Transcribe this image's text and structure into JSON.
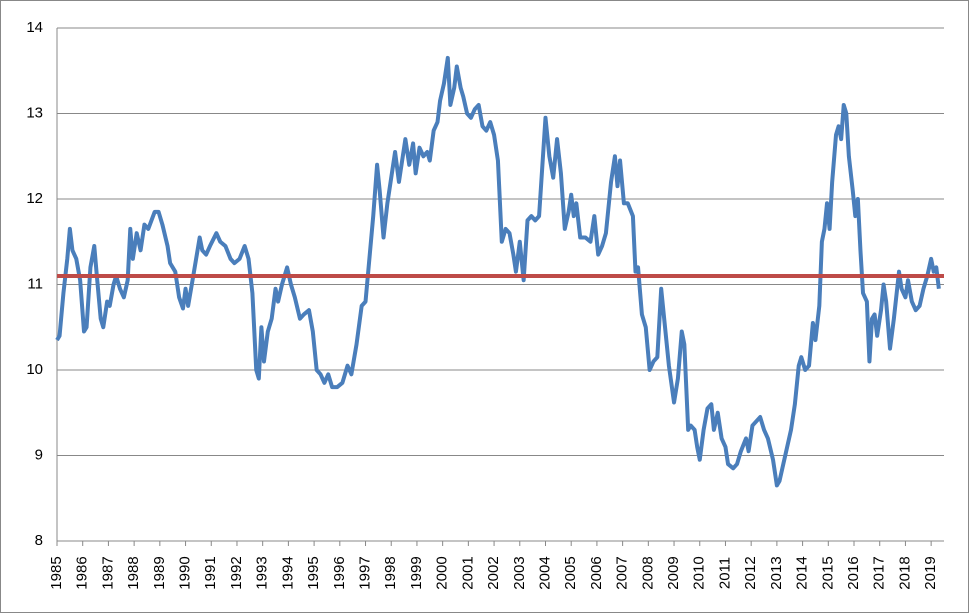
{
  "chart_data": {
    "type": "line",
    "x": [
      1985.0,
      1985.1,
      1985.25,
      1985.4,
      1985.5,
      1985.6,
      1985.75,
      1985.9,
      1986.05,
      1986.15,
      1986.3,
      1986.45,
      1986.55,
      1986.7,
      1986.8,
      1986.95,
      1987.05,
      1987.2,
      1987.3,
      1987.45,
      1987.6,
      1987.75,
      1987.85,
      1987.95,
      1988.1,
      1988.25,
      1988.4,
      1988.55,
      1988.8,
      1988.95,
      1989.1,
      1989.3,
      1989.4,
      1989.6,
      1989.75,
      1989.9,
      1990.0,
      1990.1,
      1990.3,
      1990.55,
      1990.65,
      1990.8,
      1990.95,
      1991.2,
      1991.35,
      1991.55,
      1991.75,
      1991.9,
      1992.1,
      1992.3,
      1992.45,
      1992.6,
      1992.75,
      1992.85,
      1992.95,
      1993.05,
      1993.2,
      1993.35,
      1993.5,
      1993.6,
      1993.75,
      1993.95,
      1994.1,
      1994.25,
      1994.45,
      1994.6,
      1994.8,
      1994.95,
      1995.1,
      1995.25,
      1995.4,
      1995.55,
      1995.7,
      1995.9,
      1996.1,
      1996.3,
      1996.45,
      1996.65,
      1996.85,
      1997.0,
      1997.15,
      1997.3,
      1997.45,
      1997.55,
      1997.7,
      1997.85,
      1998.05,
      1998.15,
      1998.3,
      1998.45,
      1998.55,
      1998.7,
      1998.85,
      1998.95,
      1999.1,
      1999.25,
      1999.4,
      1999.5,
      1999.65,
      1999.8,
      1999.9,
      2000.05,
      2000.2,
      2000.3,
      2000.45,
      2000.55,
      2000.7,
      2000.8,
      2000.95,
      2001.1,
      2001.25,
      2001.4,
      2001.55,
      2001.7,
      2001.85,
      2002.0,
      2002.15,
      2002.3,
      2002.45,
      2002.6,
      2002.75,
      2002.85,
      2003.0,
      2003.15,
      2003.3,
      2003.45,
      2003.6,
      2003.75,
      2004.0,
      2004.15,
      2004.3,
      2004.45,
      2004.6,
      2004.75,
      2004.9,
      2005.0,
      2005.1,
      2005.2,
      2005.35,
      2005.55,
      2005.75,
      2005.9,
      2006.05,
      2006.2,
      2006.35,
      2006.55,
      2006.7,
      2006.8,
      2006.9,
      2007.05,
      2007.2,
      2007.4,
      2007.5,
      2007.6,
      2007.75,
      2007.9,
      2008.05,
      2008.2,
      2008.35,
      2008.5,
      2008.65,
      2008.8,
      2009.0,
      2009.15,
      2009.3,
      2009.4,
      2009.55,
      2009.65,
      2009.8,
      2009.9,
      2010.0,
      2010.15,
      2010.3,
      2010.45,
      2010.55,
      2010.7,
      2010.85,
      2011.0,
      2011.1,
      2011.3,
      2011.45,
      2011.6,
      2011.8,
      2011.9,
      2012.05,
      2012.2,
      2012.35,
      2012.5,
      2012.65,
      2012.85,
      2013.0,
      2013.1,
      2013.25,
      2013.4,
      2013.55,
      2013.7,
      2013.85,
      2013.95,
      2014.1,
      2014.25,
      2014.4,
      2014.5,
      2014.65,
      2014.75,
      2014.85,
      2014.95,
      2015.05,
      2015.15,
      2015.3,
      2015.4,
      2015.5,
      2015.6,
      2015.7,
      2015.8,
      2015.95,
      2016.05,
      2016.15,
      2016.25,
      2016.35,
      2016.5,
      2016.6,
      2016.7,
      2016.8,
      2016.9,
      2017.05,
      2017.15,
      2017.25,
      2017.4,
      2017.55,
      2017.75,
      2017.85,
      2018.0,
      2018.1,
      2018.25,
      2018.4,
      2018.55,
      2018.7,
      2018.85,
      2019.0,
      2019.1,
      2019.2,
      2019.3
    ],
    "series": [
      {
        "color": "#4a7ebb",
        "values": [
          10.35,
          10.4,
          10.9,
          11.3,
          11.65,
          11.4,
          11.3,
          11.05,
          10.45,
          10.5,
          11.2,
          11.45,
          11.1,
          10.6,
          10.5,
          10.8,
          10.75,
          11.0,
          11.1,
          10.95,
          10.85,
          11.05,
          11.65,
          11.3,
          11.6,
          11.4,
          11.7,
          11.65,
          11.85,
          11.85,
          11.7,
          11.45,
          11.25,
          11.15,
          10.85,
          10.72,
          10.95,
          10.75,
          11.1,
          11.55,
          11.4,
          11.35,
          11.45,
          11.6,
          11.5,
          11.45,
          11.3,
          11.25,
          11.3,
          11.45,
          11.3,
          10.9,
          10.0,
          9.9,
          10.5,
          10.1,
          10.45,
          10.6,
          10.95,
          10.8,
          11.0,
          11.2,
          11.0,
          10.85,
          10.6,
          10.65,
          10.7,
          10.45,
          10.0,
          9.95,
          9.85,
          9.95,
          9.8,
          9.8,
          9.85,
          10.05,
          9.95,
          10.3,
          10.75,
          10.8,
          11.3,
          11.8,
          12.4,
          12.1,
          11.55,
          11.95,
          12.35,
          12.55,
          12.2,
          12.5,
          12.7,
          12.4,
          12.65,
          12.3,
          12.6,
          12.5,
          12.55,
          12.45,
          12.8,
          12.9,
          13.15,
          13.35,
          13.65,
          13.1,
          13.3,
          13.55,
          13.3,
          13.2,
          13.0,
          12.95,
          13.05,
          13.1,
          12.85,
          12.8,
          12.9,
          12.75,
          12.45,
          11.5,
          11.65,
          11.6,
          11.35,
          11.15,
          11.5,
          11.05,
          11.75,
          11.8,
          11.75,
          11.8,
          12.95,
          12.5,
          12.25,
          12.7,
          12.3,
          11.65,
          11.85,
          12.05,
          11.8,
          11.95,
          11.55,
          11.55,
          11.5,
          11.8,
          11.35,
          11.45,
          11.6,
          12.2,
          12.5,
          12.15,
          12.45,
          11.95,
          11.95,
          11.8,
          11.15,
          11.2,
          10.65,
          10.5,
          10.0,
          10.1,
          10.15,
          10.95,
          10.5,
          10.05,
          9.62,
          9.9,
          10.45,
          10.3,
          9.3,
          9.35,
          9.3,
          9.1,
          8.95,
          9.3,
          9.55,
          9.6,
          9.3,
          9.5,
          9.2,
          9.1,
          8.9,
          8.85,
          8.9,
          9.05,
          9.2,
          9.05,
          9.35,
          9.4,
          9.45,
          9.3,
          9.2,
          8.95,
          8.65,
          8.7,
          8.9,
          9.1,
          9.3,
          9.6,
          10.05,
          10.15,
          10.0,
          10.05,
          10.55,
          10.35,
          10.75,
          11.5,
          11.65,
          11.95,
          11.65,
          12.2,
          12.75,
          12.85,
          12.7,
          13.1,
          13.0,
          12.5,
          12.1,
          11.8,
          12.0,
          11.4,
          10.9,
          10.8,
          10.1,
          10.6,
          10.65,
          10.4,
          10.7,
          11.0,
          10.8,
          10.25,
          10.6,
          11.15,
          10.95,
          10.85,
          11.05,
          10.8,
          10.7,
          10.75,
          10.95,
          11.1,
          11.3,
          11.15,
          11.2,
          10.95
        ]
      }
    ],
    "hline": {
      "value": 11.1,
      "color": "#be4b48"
    },
    "xlim": [
      1985,
      2019.5
    ],
    "xticks": [
      1985,
      1986,
      1987,
      1988,
      1989,
      1990,
      1991,
      1992,
      1993,
      1994,
      1995,
      1996,
      1997,
      1998,
      1999,
      2000,
      2001,
      2002,
      2003,
      2004,
      2005,
      2006,
      2007,
      2008,
      2009,
      2010,
      2011,
      2012,
      2013,
      2014,
      2015,
      2016,
      2017,
      2018,
      2019
    ],
    "ylim": [
      8,
      14
    ],
    "yticks": [
      8,
      9,
      10,
      11,
      12,
      13,
      14
    ],
    "grid": true
  }
}
